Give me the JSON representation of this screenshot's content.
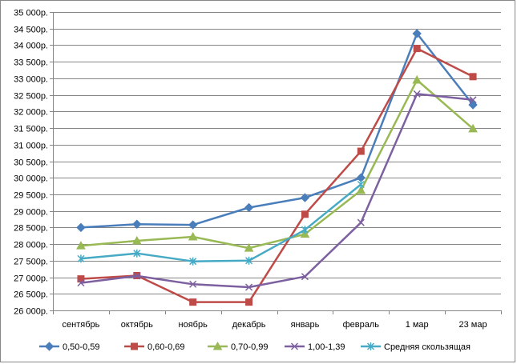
{
  "chart_data": {
    "type": "line",
    "categories": [
      "сентябрь",
      "октябрь",
      "ноябрь",
      "декабрь",
      "январь",
      "февраль",
      "1 мар",
      "23 мар"
    ],
    "ylim": [
      26000,
      35000
    ],
    "ytick_step": 500,
    "ytick_labels": [
      "26 000р.",
      "26 500р.",
      "27 000р.",
      "27 500р.",
      "28 000р.",
      "28 500р.",
      "29 000р.",
      "29 500р.",
      "30 000р.",
      "30 500р.",
      "31 000р.",
      "31 500р.",
      "32 000р.",
      "32 500р.",
      "33 000р.",
      "33 500р.",
      "34 000р.",
      "34 500р.",
      "35 000р."
    ],
    "grid": "horizontal",
    "legend_position": "bottom",
    "series": [
      {
        "name": "0,50-0,59",
        "color": "#4a7ebb",
        "marker": "diamond",
        "values": [
          28500,
          28600,
          28580,
          29100,
          29400,
          30000,
          34350,
          32200
        ]
      },
      {
        "name": "0,60-0,69",
        "color": "#be4b48",
        "marker": "square",
        "values": [
          26950,
          27050,
          26250,
          26250,
          28900,
          30800,
          33900,
          33050
        ]
      },
      {
        "name": "0,70-0,99",
        "color": "#98b954",
        "marker": "triangle",
        "values": [
          27950,
          28100,
          28220,
          27880,
          28300,
          29620,
          32950,
          31480
        ]
      },
      {
        "name": "1,00-1,39",
        "color": "#7d60a0",
        "marker": "x",
        "values": [
          26830,
          27040,
          26790,
          26700,
          27020,
          28650,
          32530,
          32350
        ]
      },
      {
        "name": "Средняя скользящая",
        "color": "#46aac5",
        "marker": "asterisk",
        "values": [
          27560,
          27720,
          27480,
          27500,
          28430,
          29800,
          null,
          null
        ]
      }
    ]
  }
}
